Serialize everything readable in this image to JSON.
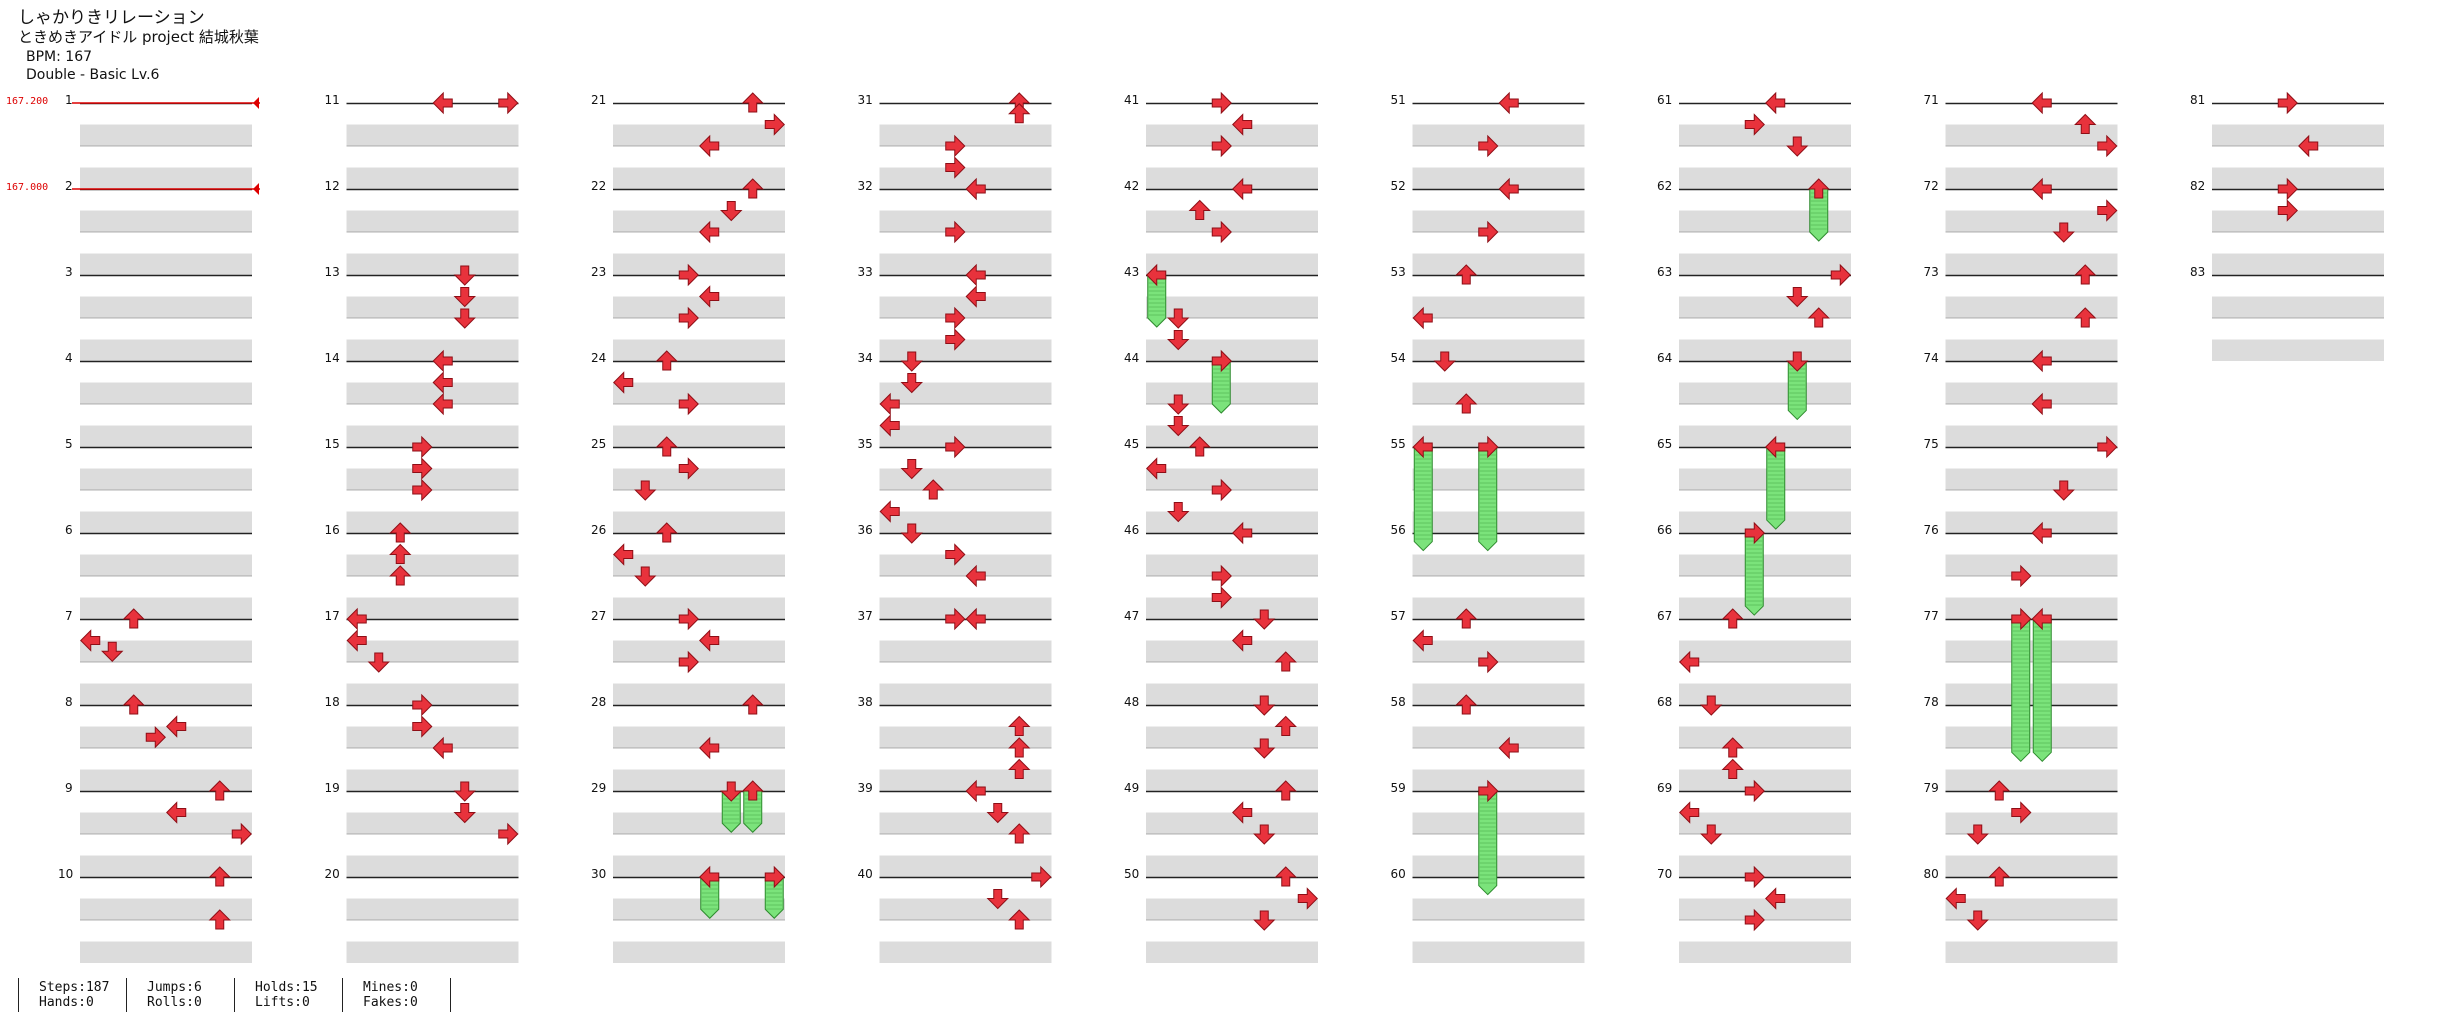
{
  "song": {
    "title": "しゃかりきリレーション",
    "artist": "ときめきアイドル project 結城秋葉",
    "bpm_label": "BPM: 167",
    "difficulty_label": "Double - Basic  Lv.6"
  },
  "bpm_changes": [
    {
      "measure": 1,
      "label": "167.200"
    },
    {
      "measure": 2,
      "label": "167.000"
    }
  ],
  "measures": [
    "1",
    "2",
    "3",
    "4",
    "5",
    "6",
    "7",
    "8",
    "9",
    "10",
    "11",
    "12",
    "13",
    "14",
    "15",
    "16",
    "17",
    "18",
    "19",
    "20",
    "21",
    "22",
    "23",
    "24",
    "25",
    "26",
    "27",
    "28",
    "29",
    "30",
    "31",
    "32",
    "33",
    "34",
    "35",
    "36",
    "37",
    "38",
    "39",
    "40",
    "41",
    "42",
    "43",
    "44",
    "45",
    "46",
    "47",
    "48",
    "49",
    "50",
    "51",
    "52",
    "53",
    "54",
    "55",
    "56",
    "57",
    "58",
    "59",
    "60",
    "61",
    "62",
    "63",
    "64",
    "65",
    "66",
    "67",
    "68",
    "69",
    "70",
    "71",
    "72",
    "73",
    "74",
    "75",
    "76",
    "77",
    "78",
    "79",
    "80",
    "81",
    "82",
    "83"
  ],
  "notes": [
    {
      "m": 7,
      "b": 0,
      "lane": 2,
      "dir": "up"
    },
    {
      "m": 7,
      "b": 1,
      "lane": 0,
      "dir": "left"
    },
    {
      "m": 7,
      "b": 1.5,
      "lane": 1,
      "dir": "down"
    },
    {
      "m": 8,
      "b": 0,
      "lane": 2,
      "dir": "up"
    },
    {
      "m": 8,
      "b": 1,
      "lane": 4,
      "dir": "left"
    },
    {
      "m": 8,
      "b": 1.5,
      "lane": 3,
      "dir": "right"
    },
    {
      "m": 9,
      "b": 0,
      "lane": 6,
      "dir": "up"
    },
    {
      "m": 9,
      "b": 1,
      "lane": 4,
      "dir": "left"
    },
    {
      "m": 9,
      "b": 2,
      "lane": 7,
      "dir": "right"
    },
    {
      "m": 10,
      "b": 0,
      "lane": 6,
      "dir": "up"
    },
    {
      "m": 10,
      "b": 2,
      "lane": 6,
      "dir": "up"
    },
    {
      "m": 11,
      "b": 0,
      "lane": 4,
      "dir": "left"
    },
    {
      "m": 11,
      "b": 0,
      "lane": 7,
      "dir": "right"
    },
    {
      "m": 13,
      "b": 0,
      "lane": 5,
      "dir": "down"
    },
    {
      "m": 13,
      "b": 1,
      "lane": 5,
      "dir": "down"
    },
    {
      "m": 13,
      "b": 2,
      "lane": 5,
      "dir": "down"
    },
    {
      "m": 14,
      "b": 0,
      "lane": 4,
      "dir": "left"
    },
    {
      "m": 14,
      "b": 1,
      "lane": 4,
      "dir": "left"
    },
    {
      "m": 14,
      "b": 2,
      "lane": 4,
      "dir": "left"
    },
    {
      "m": 15,
      "b": 0,
      "lane": 3,
      "dir": "right"
    },
    {
      "m": 15,
      "b": 1,
      "lane": 3,
      "dir": "right"
    },
    {
      "m": 15,
      "b": 2,
      "lane": 3,
      "dir": "right"
    },
    {
      "m": 16,
      "b": 0,
      "lane": 2,
      "dir": "up"
    },
    {
      "m": 16,
      "b": 1,
      "lane": 2,
      "dir": "up"
    },
    {
      "m": 16,
      "b": 2,
      "lane": 2,
      "dir": "up"
    },
    {
      "m": 17,
      "b": 0,
      "lane": 0,
      "dir": "left"
    },
    {
      "m": 17,
      "b": 1,
      "lane": 0,
      "dir": "left"
    },
    {
      "m": 17,
      "b": 2,
      "lane": 1,
      "dir": "down"
    },
    {
      "m": 18,
      "b": 0,
      "lane": 3,
      "dir": "right"
    },
    {
      "m": 18,
      "b": 1,
      "lane": 3,
      "dir": "right"
    },
    {
      "m": 18,
      "b": 2,
      "lane": 4,
      "dir": "left"
    },
    {
      "m": 19,
      "b": 0,
      "lane": 5,
      "dir": "down"
    },
    {
      "m": 19,
      "b": 1,
      "lane": 5,
      "dir": "down"
    },
    {
      "m": 19,
      "b": 2,
      "lane": 7,
      "dir": "right"
    },
    {
      "m": 21,
      "b": 0,
      "lane": 6,
      "dir": "up"
    },
    {
      "m": 21,
      "b": 1,
      "lane": 7,
      "dir": "right"
    },
    {
      "m": 21,
      "b": 2,
      "lane": 4,
      "dir": "left"
    },
    {
      "m": 22,
      "b": 0,
      "lane": 6,
      "dir": "up"
    },
    {
      "m": 22,
      "b": 1,
      "lane": 5,
      "dir": "down"
    },
    {
      "m": 22,
      "b": 2,
      "lane": 4,
      "dir": "left"
    },
    {
      "m": 23,
      "b": 0,
      "lane": 3,
      "dir": "right"
    },
    {
      "m": 23,
      "b": 1,
      "lane": 4,
      "dir": "left"
    },
    {
      "m": 23,
      "b": 2,
      "lane": 3,
      "dir": "right"
    },
    {
      "m": 24,
      "b": 0,
      "lane": 2,
      "dir": "up"
    },
    {
      "m": 24,
      "b": 1,
      "lane": 0,
      "dir": "left"
    },
    {
      "m": 24,
      "b": 2,
      "lane": 3,
      "dir": "right"
    },
    {
      "m": 25,
      "b": 0,
      "lane": 2,
      "dir": "up"
    },
    {
      "m": 25,
      "b": 1,
      "lane": 3,
      "dir": "right"
    },
    {
      "m": 25,
      "b": 2,
      "lane": 1,
      "dir": "down"
    },
    {
      "m": 26,
      "b": 0,
      "lane": 2,
      "dir": "up"
    },
    {
      "m": 26,
      "b": 1,
      "lane": 0,
      "dir": "left"
    },
    {
      "m": 26,
      "b": 2,
      "lane": 1,
      "dir": "down"
    },
    {
      "m": 27,
      "b": 0,
      "lane": 3,
      "dir": "right"
    },
    {
      "m": 27,
      "b": 1,
      "lane": 4,
      "dir": "left"
    },
    {
      "m": 27,
      "b": 2,
      "lane": 3,
      "dir": "right"
    },
    {
      "m": 28,
      "b": 0,
      "lane": 6,
      "dir": "up"
    },
    {
      "m": 28,
      "b": 2,
      "lane": 4,
      "dir": "left"
    },
    {
      "m": 29,
      "b": 0,
      "lane": 5,
      "dir": "down",
      "hold": 1.5
    },
    {
      "m": 29,
      "b": 0,
      "lane": 6,
      "dir": "up",
      "hold": 1.5
    },
    {
      "m": 30,
      "b": 0,
      "lane": 4,
      "dir": "left",
      "hold": 1.5
    },
    {
      "m": 30,
      "b": 0,
      "lane": 7,
      "dir": "right",
      "hold": 1.5
    },
    {
      "m": 31,
      "b": 0,
      "lane": 6,
      "dir": "up"
    },
    {
      "m": 31,
      "b": 0.5,
      "lane": 6,
      "dir": "up"
    },
    {
      "m": 31,
      "b": 2,
      "lane": 3,
      "dir": "right"
    },
    {
      "m": 31,
      "b": 3,
      "lane": 3,
      "dir": "right"
    },
    {
      "m": 32,
      "b": 0,
      "lane": 4,
      "dir": "left"
    },
    {
      "m": 32,
      "b": 2,
      "lane": 3,
      "dir": "right"
    },
    {
      "m": 33,
      "b": 0,
      "lane": 4,
      "dir": "left"
    },
    {
      "m": 33,
      "b": 1,
      "lane": 4,
      "dir": "left"
    },
    {
      "m": 33,
      "b": 2,
      "lane": 3,
      "dir": "right"
    },
    {
      "m": 33,
      "b": 3,
      "lane": 3,
      "dir": "right"
    },
    {
      "m": 34,
      "b": 0,
      "lane": 1,
      "dir": "down"
    },
    {
      "m": 34,
      "b": 1,
      "lane": 1,
      "dir": "down"
    },
    {
      "m": 34,
      "b": 2,
      "lane": 0,
      "dir": "left"
    },
    {
      "m": 34,
      "b": 3,
      "lane": 0,
      "dir": "left"
    },
    {
      "m": 35,
      "b": 0,
      "lane": 3,
      "dir": "right"
    },
    {
      "m": 35,
      "b": 1,
      "lane": 1,
      "dir": "down"
    },
    {
      "m": 35,
      "b": 2,
      "lane": 2,
      "dir": "up"
    },
    {
      "m": 35,
      "b": 3,
      "lane": 0,
      "dir": "left"
    },
    {
      "m": 36,
      "b": 0,
      "lane": 1,
      "dir": "down"
    },
    {
      "m": 36,
      "b": 1,
      "lane": 3,
      "dir": "right"
    },
    {
      "m": 36,
      "b": 2,
      "lane": 4,
      "dir": "left"
    },
    {
      "m": 37,
      "b": 0,
      "lane": 3,
      "dir": "right"
    },
    {
      "m": 37,
      "b": 0,
      "lane": 4,
      "dir": "left"
    },
    {
      "m": 38,
      "b": 1,
      "lane": 6,
      "dir": "up"
    },
    {
      "m": 38,
      "b": 2,
      "lane": 6,
      "dir": "up"
    },
    {
      "m": 38,
      "b": 3,
      "lane": 6,
      "dir": "up"
    },
    {
      "m": 39,
      "b": 0,
      "lane": 4,
      "dir": "left"
    },
    {
      "m": 39,
      "b": 1,
      "lane": 5,
      "dir": "down"
    },
    {
      "m": 39,
      "b": 2,
      "lane": 6,
      "dir": "up"
    },
    {
      "m": 40,
      "b": 0,
      "lane": 7,
      "dir": "right"
    },
    {
      "m": 40,
      "b": 1,
      "lane": 5,
      "dir": "down"
    },
    {
      "m": 40,
      "b": 2,
      "lane": 6,
      "dir": "up"
    },
    {
      "m": 41,
      "b": 0,
      "lane": 3,
      "dir": "right"
    },
    {
      "m": 41,
      "b": 1,
      "lane": 4,
      "dir": "left"
    },
    {
      "m": 41,
      "b": 2,
      "lane": 3,
      "dir": "right"
    },
    {
      "m": 42,
      "b": 0,
      "lane": 4,
      "dir": "left"
    },
    {
      "m": 42,
      "b": 1,
      "lane": 2,
      "dir": "up"
    },
    {
      "m": 42,
      "b": 2,
      "lane": 3,
      "dir": "right"
    },
    {
      "m": 43,
      "b": 0,
      "lane": 0,
      "dir": "left",
      "hold": 2
    },
    {
      "m": 43,
      "b": 2,
      "lane": 1,
      "dir": "down"
    },
    {
      "m": 43,
      "b": 3,
      "lane": 1,
      "dir": "down"
    },
    {
      "m": 44,
      "b": 0,
      "lane": 3,
      "dir": "right",
      "hold": 2
    },
    {
      "m": 44,
      "b": 2,
      "lane": 1,
      "dir": "down"
    },
    {
      "m": 44,
      "b": 3,
      "lane": 1,
      "dir": "down"
    },
    {
      "m": 45,
      "b": 0,
      "lane": 2,
      "dir": "up"
    },
    {
      "m": 45,
      "b": 1,
      "lane": 0,
      "dir": "left"
    },
    {
      "m": 45,
      "b": 2,
      "lane": 3,
      "dir": "right"
    },
    {
      "m": 45,
      "b": 3,
      "lane": 1,
      "dir": "down"
    },
    {
      "m": 46,
      "b": 0,
      "lane": 4,
      "dir": "left"
    },
    {
      "m": 46,
      "b": 2,
      "lane": 3,
      "dir": "right"
    },
    {
      "m": 46,
      "b": 3,
      "lane": 3,
      "dir": "right"
    },
    {
      "m": 47,
      "b": 0,
      "lane": 5,
      "dir": "down"
    },
    {
      "m": 47,
      "b": 1,
      "lane": 4,
      "dir": "left"
    },
    {
      "m": 47,
      "b": 2,
      "lane": 6,
      "dir": "up"
    },
    {
      "m": 48,
      "b": 0,
      "lane": 5,
      "dir": "down"
    },
    {
      "m": 48,
      "b": 1,
      "lane": 6,
      "dir": "up"
    },
    {
      "m": 48,
      "b": 2,
      "lane": 5,
      "dir": "down"
    },
    {
      "m": 49,
      "b": 0,
      "lane": 6,
      "dir": "up"
    },
    {
      "m": 49,
      "b": 1,
      "lane": 4,
      "dir": "left"
    },
    {
      "m": 49,
      "b": 2,
      "lane": 5,
      "dir": "down"
    },
    {
      "m": 50,
      "b": 0,
      "lane": 6,
      "dir": "up"
    },
    {
      "m": 50,
      "b": 1,
      "lane": 7,
      "dir": "right"
    },
    {
      "m": 50,
      "b": 2,
      "lane": 5,
      "dir": "down"
    },
    {
      "m": 51,
      "b": 0,
      "lane": 4,
      "dir": "left"
    },
    {
      "m": 51,
      "b": 2,
      "lane": 3,
      "dir": "right"
    },
    {
      "m": 52,
      "b": 0,
      "lane": 4,
      "dir": "left"
    },
    {
      "m": 52,
      "b": 2,
      "lane": 3,
      "dir": "right"
    },
    {
      "m": 53,
      "b": 0,
      "lane": 2,
      "dir": "up"
    },
    {
      "m": 53,
      "b": 2,
      "lane": 0,
      "dir": "left"
    },
    {
      "m": 54,
      "b": 0,
      "lane": 1,
      "dir": "down"
    },
    {
      "m": 54,
      "b": 2,
      "lane": 2,
      "dir": "up"
    },
    {
      "m": 55,
      "b": 0,
      "lane": 0,
      "dir": "left",
      "hold": 4.4
    },
    {
      "m": 55,
      "b": 0,
      "lane": 3,
      "dir": "right",
      "hold": 4.4
    },
    {
      "m": 57,
      "b": 0,
      "lane": 2,
      "dir": "up"
    },
    {
      "m": 57,
      "b": 1,
      "lane": 0,
      "dir": "left"
    },
    {
      "m": 57,
      "b": 2,
      "lane": 3,
      "dir": "right"
    },
    {
      "m": 58,
      "b": 0,
      "lane": 2,
      "dir": "up"
    },
    {
      "m": 58,
      "b": 2,
      "lane": 4,
      "dir": "left"
    },
    {
      "m": 59,
      "b": 0,
      "lane": 3,
      "dir": "right",
      "hold": 4.4
    },
    {
      "m": 61,
      "b": 0,
      "lane": 4,
      "dir": "left"
    },
    {
      "m": 61,
      "b": 1,
      "lane": 3,
      "dir": "right"
    },
    {
      "m": 61,
      "b": 2,
      "lane": 5,
      "dir": "down"
    },
    {
      "m": 62,
      "b": 0,
      "lane": 6,
      "dir": "up",
      "hold": 2
    },
    {
      "m": 63,
      "b": 0,
      "lane": 7,
      "dir": "right"
    },
    {
      "m": 63,
      "b": 1,
      "lane": 5,
      "dir": "down"
    },
    {
      "m": 63,
      "b": 2,
      "lane": 6,
      "dir": "up"
    },
    {
      "m": 64,
      "b": 0,
      "lane": 5,
      "dir": "down",
      "hold": 2.3
    },
    {
      "m": 65,
      "b": 0,
      "lane": 4,
      "dir": "left",
      "hold": 3.4
    },
    {
      "m": 66,
      "b": 0,
      "lane": 3,
      "dir": "right",
      "hold": 3.4
    },
    {
      "m": 67,
      "b": 0,
      "lane": 2,
      "dir": "up"
    },
    {
      "m": 67,
      "b": 2,
      "lane": 0,
      "dir": "left"
    },
    {
      "m": 68,
      "b": 0,
      "lane": 1,
      "dir": "down"
    },
    {
      "m": 68,
      "b": 2,
      "lane": 2,
      "dir": "up"
    },
    {
      "m": 68,
      "b": 3,
      "lane": 2,
      "dir": "up"
    },
    {
      "m": 69,
      "b": 0,
      "lane": 3,
      "dir": "right"
    },
    {
      "m": 69,
      "b": 1,
      "lane": 0,
      "dir": "left"
    },
    {
      "m": 69,
      "b": 2,
      "lane": 1,
      "dir": "down"
    },
    {
      "m": 70,
      "b": 0,
      "lane": 3,
      "dir": "right"
    },
    {
      "m": 70,
      "b": 1,
      "lane": 4,
      "dir": "left"
    },
    {
      "m": 70,
      "b": 2,
      "lane": 3,
      "dir": "right"
    },
    {
      "m": 71,
      "b": 0,
      "lane": 4,
      "dir": "left"
    },
    {
      "m": 71,
      "b": 1,
      "lane": 6,
      "dir": "up"
    },
    {
      "m": 71,
      "b": 2,
      "lane": 7,
      "dir": "right"
    },
    {
      "m": 72,
      "b": 0,
      "lane": 4,
      "dir": "left"
    },
    {
      "m": 72,
      "b": 1,
      "lane": 7,
      "dir": "right"
    },
    {
      "m": 72,
      "b": 2,
      "lane": 5,
      "dir": "down"
    },
    {
      "m": 73,
      "b": 0,
      "lane": 6,
      "dir": "up"
    },
    {
      "m": 73,
      "b": 2,
      "lane": 6,
      "dir": "up"
    },
    {
      "m": 74,
      "b": 0,
      "lane": 4,
      "dir": "left"
    },
    {
      "m": 74,
      "b": 2,
      "lane": 4,
      "dir": "left"
    },
    {
      "m": 75,
      "b": 0,
      "lane": 7,
      "dir": "right"
    },
    {
      "m": 75,
      "b": 2,
      "lane": 5,
      "dir": "down"
    },
    {
      "m": 76,
      "b": 0,
      "lane": 4,
      "dir": "left"
    },
    {
      "m": 76,
      "b": 2,
      "lane": 3,
      "dir": "right"
    },
    {
      "m": 77,
      "b": 0,
      "lane": 3,
      "dir": "right",
      "hold": 6.2
    },
    {
      "m": 77,
      "b": 0,
      "lane": 4,
      "dir": "left",
      "hold": 6.2
    },
    {
      "m": 79,
      "b": 0,
      "lane": 2,
      "dir": "up"
    },
    {
      "m": 79,
      "b": 1,
      "lane": 3,
      "dir": "right"
    },
    {
      "m": 79,
      "b": 2,
      "lane": 1,
      "dir": "down"
    },
    {
      "m": 80,
      "b": 0,
      "lane": 2,
      "dir": "up"
    },
    {
      "m": 80,
      "b": 1,
      "lane": 0,
      "dir": "left"
    },
    {
      "m": 80,
      "b": 2,
      "lane": 1,
      "dir": "down"
    },
    {
      "m": 81,
      "b": 0,
      "lane": 3,
      "dir": "right"
    },
    {
      "m": 81,
      "b": 2,
      "lane": 4,
      "dir": "left"
    },
    {
      "m": 82,
      "b": 0,
      "lane": 3,
      "dir": "right"
    },
    {
      "m": 82,
      "b": 1,
      "lane": 3,
      "dir": "right"
    }
  ],
  "stats": [
    {
      "top": "Steps:187",
      "bottom": "Hands:0"
    },
    {
      "top": "Jumps:6",
      "bottom": "Rolls:0"
    },
    {
      "top": "Holds:15",
      "bottom": "Lifts:0"
    },
    {
      "top": "Mines:0",
      "bottom": "Fakes:0"
    }
  ],
  "colors": {
    "arrow": "#e8323c",
    "arrow_edge": "#8e0e16",
    "hold": "#7be37b",
    "hold_edge": "#2d8a2d",
    "stripe": "#dcdcdc",
    "bpm": "#dd0000"
  }
}
